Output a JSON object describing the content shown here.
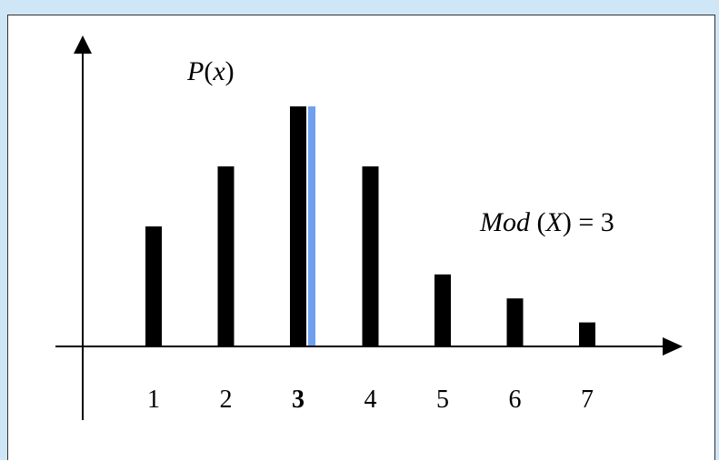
{
  "chart_data": {
    "type": "bar",
    "title": "",
    "ylabel_prefix": "P",
    "ylabel_var": "x",
    "annotation_prefix": "Mod",
    "annotation_var": "X",
    "annotation_value": "3",
    "categories": [
      "1",
      "2",
      "3",
      "4",
      "5",
      "6",
      "7"
    ],
    "values": [
      0.4,
      0.6,
      0.8,
      0.6,
      0.24,
      0.16,
      0.08
    ],
    "ylim": [
      0,
      1
    ],
    "mode_category": "3",
    "mode_line_value": 0.8,
    "colors": {
      "bar": "#000000",
      "mode_line": "#6f9ff0",
      "axis": "#000000"
    },
    "grid": false
  }
}
